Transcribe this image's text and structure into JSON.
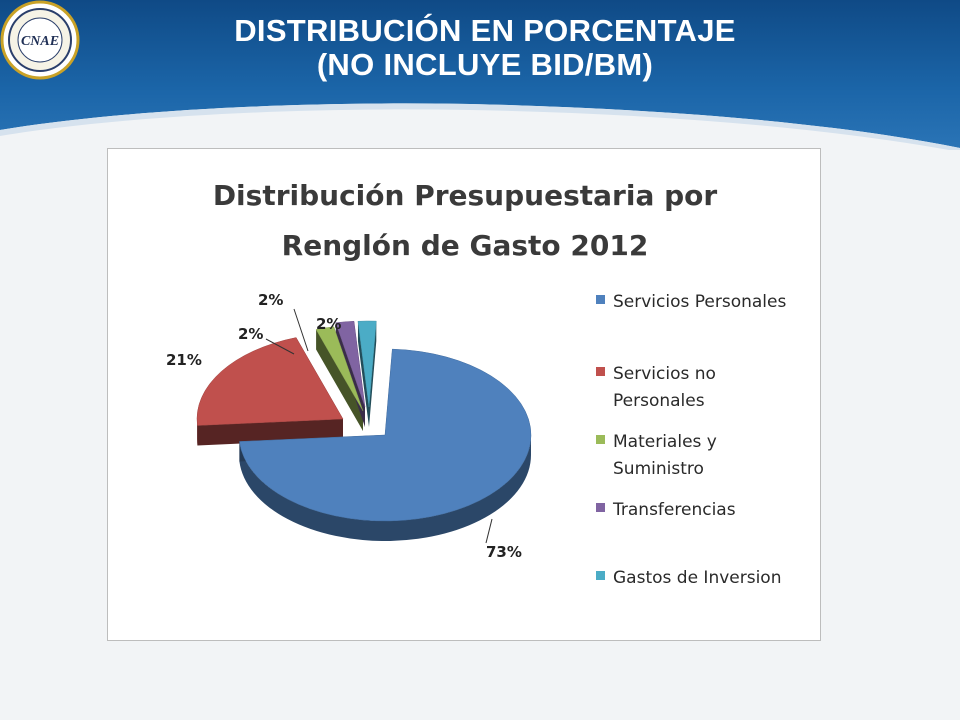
{
  "slide": {
    "title_line1": "DISTRIBUCIÓN EN PORCENTAJE",
    "title_line2": "(NO INCLUYE BID/BM)",
    "logo_text": "CNAE",
    "colors": {
      "header_blue": "#1a5fa0",
      "header_dark": "#0e3f73"
    }
  },
  "chart_data": {
    "type": "pie",
    "title_line1": "Distribución Presupuestaria por",
    "title_line2": "Renglón de Gasto 2012",
    "series": [
      {
        "name": "Servicios Personales",
        "value": 73,
        "label": "73%",
        "color": "#4f81bd"
      },
      {
        "name": "Servicios no Personales",
        "value": 21,
        "label": "21%",
        "color": "#c0504d"
      },
      {
        "name": "Materiales y Suministro",
        "value": 2,
        "label": "2%",
        "color": "#9bbb59"
      },
      {
        "name": "Transferencias",
        "value": 2,
        "label": "2%",
        "color": "#8064a2"
      },
      {
        "name": "Gastos de Inversion",
        "value": 2,
        "label": "2%",
        "color": "#4bacc6"
      }
    ],
    "legend_position": "right",
    "legend": [
      {
        "line1": "Servicios Personales",
        "line2": ""
      },
      {
        "line1": "Servicios no",
        "line2": "Personales"
      },
      {
        "line1": "Materiales y",
        "line2": "Suministro"
      },
      {
        "line1": "Transferencias",
        "line2": ""
      },
      {
        "line1": "Gastos de Inversion",
        "line2": ""
      }
    ]
  }
}
